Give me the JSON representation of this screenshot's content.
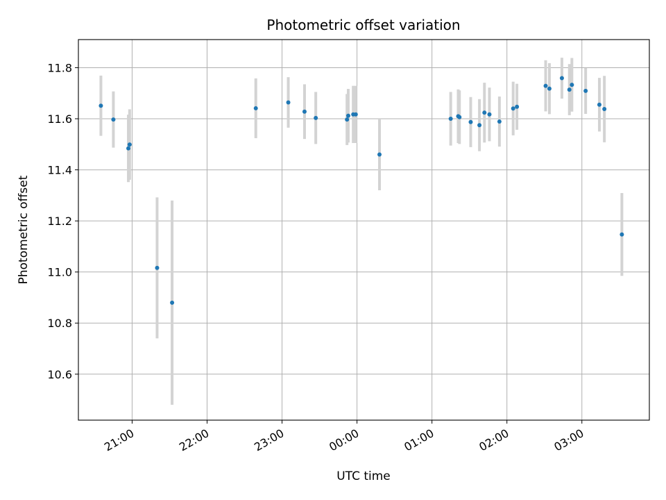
{
  "chart_data": {
    "type": "scatter",
    "title": "Photometric offset variation",
    "xlabel": "UTC time",
    "ylabel": "Photometric offset",
    "grid": true,
    "colors": {
      "point": "#1f77b4",
      "errorbar": "#d3d3d3",
      "grid": "#b0b0b0",
      "axis": "#000000"
    },
    "xlim": [
      "20:17",
      "03:54"
    ],
    "ylim": [
      10.42,
      11.91
    ],
    "x_ticks": [
      "21:00",
      "22:00",
      "23:00",
      "00:00",
      "01:00",
      "02:00",
      "03:00"
    ],
    "y_ticks": [
      "10.6",
      "10.8",
      "11.0",
      "11.2",
      "11.4",
      "11.6",
      "11.8"
    ],
    "series": [
      {
        "points": [
          {
            "x": "20:35",
            "y": 11.651,
            "err": 0.118
          },
          {
            "x": "20:45",
            "y": 11.597,
            "err": 0.11
          },
          {
            "x": "20:57",
            "y": 11.484,
            "err": 0.132
          },
          {
            "x": "20:58",
            "y": 11.499,
            "err": 0.138
          },
          {
            "x": "21:20",
            "y": 11.016,
            "err": 0.276
          },
          {
            "x": "21:32",
            "y": 10.88,
            "err": 0.4
          },
          {
            "x": "22:39",
            "y": 11.641,
            "err": 0.117
          },
          {
            "x": "23:05",
            "y": 11.664,
            "err": 0.099
          },
          {
            "x": "23:18",
            "y": 11.628,
            "err": 0.107
          },
          {
            "x": "23:27",
            "y": 11.603,
            "err": 0.102
          },
          {
            "x": "23:52",
            "y": 11.597,
            "err": 0.1
          },
          {
            "x": "23:53",
            "y": 11.612,
            "err": 0.105
          },
          {
            "x": "23:57",
            "y": 11.617,
            "err": 0.112
          },
          {
            "x": "23:59",
            "y": 11.617,
            "err": 0.112
          },
          {
            "x": "00:18",
            "y": 11.46,
            "err": 0.14
          },
          {
            "x": "01:15",
            "y": 11.6,
            "err": 0.105
          },
          {
            "x": "01:21",
            "y": 11.61,
            "err": 0.105
          },
          {
            "x": "01:22",
            "y": 11.606,
            "err": 0.105
          },
          {
            "x": "01:31",
            "y": 11.587,
            "err": 0.098
          },
          {
            "x": "01:38",
            "y": 11.575,
            "err": 0.102
          },
          {
            "x": "01:42",
            "y": 11.624,
            "err": 0.117
          },
          {
            "x": "01:46",
            "y": 11.617,
            "err": 0.105
          },
          {
            "x": "01:54",
            "y": 11.589,
            "err": 0.098
          },
          {
            "x": "02:05",
            "y": 11.64,
            "err": 0.105
          },
          {
            "x": "02:08",
            "y": 11.647,
            "err": 0.09
          },
          {
            "x": "02:31",
            "y": 11.729,
            "err": 0.1
          },
          {
            "x": "02:34",
            "y": 11.718,
            "err": 0.1
          },
          {
            "x": "02:44",
            "y": 11.759,
            "err": 0.08
          },
          {
            "x": "02:50",
            "y": 11.714,
            "err": 0.1
          },
          {
            "x": "02:52",
            "y": 11.733,
            "err": 0.105
          },
          {
            "x": "03:03",
            "y": 11.709,
            "err": 0.09
          },
          {
            "x": "03:14",
            "y": 11.655,
            "err": 0.105
          },
          {
            "x": "03:18",
            "y": 11.638,
            "err": 0.13
          },
          {
            "x": "03:32",
            "y": 11.147,
            "err": 0.162
          }
        ]
      }
    ]
  }
}
